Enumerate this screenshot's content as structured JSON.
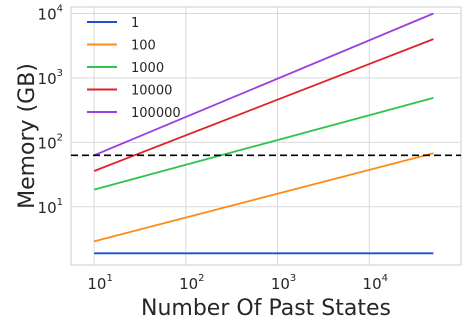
{
  "chart_data": {
    "type": "line",
    "xlabel": "Number Of Past States",
    "ylabel": "Memory (GB)",
    "xscale": "log",
    "yscale": "log",
    "xlim": [
      5.6,
      100000
    ],
    "ylim": [
      1.25,
      12600
    ],
    "x_ticks": [
      {
        "value": 10,
        "base": "10",
        "exp": "1"
      },
      {
        "value": 100,
        "base": "10",
        "exp": "2"
      },
      {
        "value": 1000,
        "base": "10",
        "exp": "3"
      },
      {
        "value": 10000,
        "base": "10",
        "exp": "4"
      }
    ],
    "y_ticks": [
      {
        "value": 10,
        "base": "10",
        "exp": "1"
      },
      {
        "value": 100,
        "base": "10",
        "exp": "2"
      },
      {
        "value": 1000,
        "base": "10",
        "exp": "3"
      },
      {
        "value": 10000,
        "base": "10",
        "exp": "4"
      }
    ],
    "grid": true,
    "legend_position": "top-left",
    "series": [
      {
        "name": "1",
        "color": "#1f4fd1",
        "x": [
          10,
          50000
        ],
        "y": [
          1.9,
          1.9
        ]
      },
      {
        "name": "100",
        "color": "#ff8c1a",
        "x": [
          10,
          50000
        ],
        "y": [
          2.9,
          68
        ]
      },
      {
        "name": "1000",
        "color": "#2ec44a",
        "x": [
          10,
          50000
        ],
        "y": [
          18.5,
          490
        ]
      },
      {
        "name": "10000",
        "color": "#e0202a",
        "x": [
          10,
          50000
        ],
        "y": [
          36,
          4000
        ]
      },
      {
        "name": "100000",
        "color": "#9a3fe0",
        "x": [
          10,
          50000
        ],
        "y": [
          63,
          10000
        ]
      }
    ],
    "hline": {
      "y": 63,
      "style": "dashed",
      "color": "#000000"
    }
  }
}
